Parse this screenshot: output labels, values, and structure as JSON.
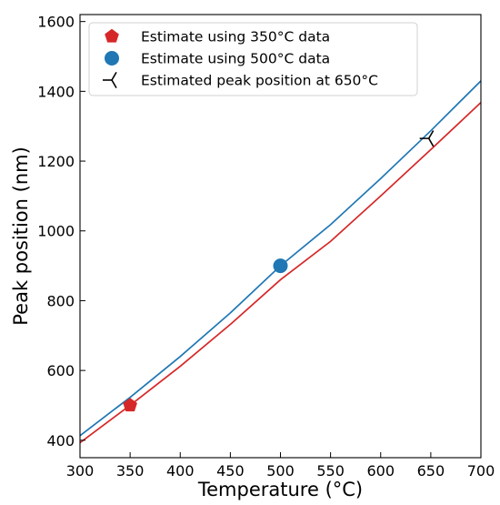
{
  "chart_data": {
    "type": "line",
    "xlabel": "Temperature (°C)",
    "ylabel": "Peak position (nm)",
    "xlim": [
      300,
      700
    ],
    "ylim": [
      350,
      1620
    ],
    "xticks": [
      300,
      350,
      400,
      450,
      500,
      550,
      600,
      650,
      700
    ],
    "yticks": [
      400,
      600,
      800,
      1000,
      1200,
      1400,
      1600
    ],
    "grid": false,
    "legend_position": "top-left",
    "series": [
      {
        "name": "Estimate using 350°C data",
        "color": "#d62728",
        "marker": "pentagon",
        "point": {
          "x": 350,
          "y": 500
        },
        "curve": {
          "x": [
            300,
            350,
            400,
            450,
            500,
            550,
            600,
            650,
            700
          ],
          "y": [
            393,
            500,
            612,
            732,
            860,
            970,
            1100,
            1233,
            1368
          ]
        }
      },
      {
        "name": "Estimate using 500°C data",
        "color": "#1f77b4",
        "marker": "circle",
        "point": {
          "x": 500,
          "y": 900
        },
        "curve": {
          "x": [
            300,
            350,
            400,
            450,
            500,
            550,
            600,
            650,
            700
          ],
          "y": [
            413,
            523,
            640,
            765,
            900,
            1018,
            1150,
            1287,
            1430
          ]
        }
      },
      {
        "name": "Estimated peak position at 650°C",
        "color": "#000000",
        "marker": "tri_left",
        "point": {
          "x": 648,
          "y": 1265
        }
      }
    ]
  }
}
